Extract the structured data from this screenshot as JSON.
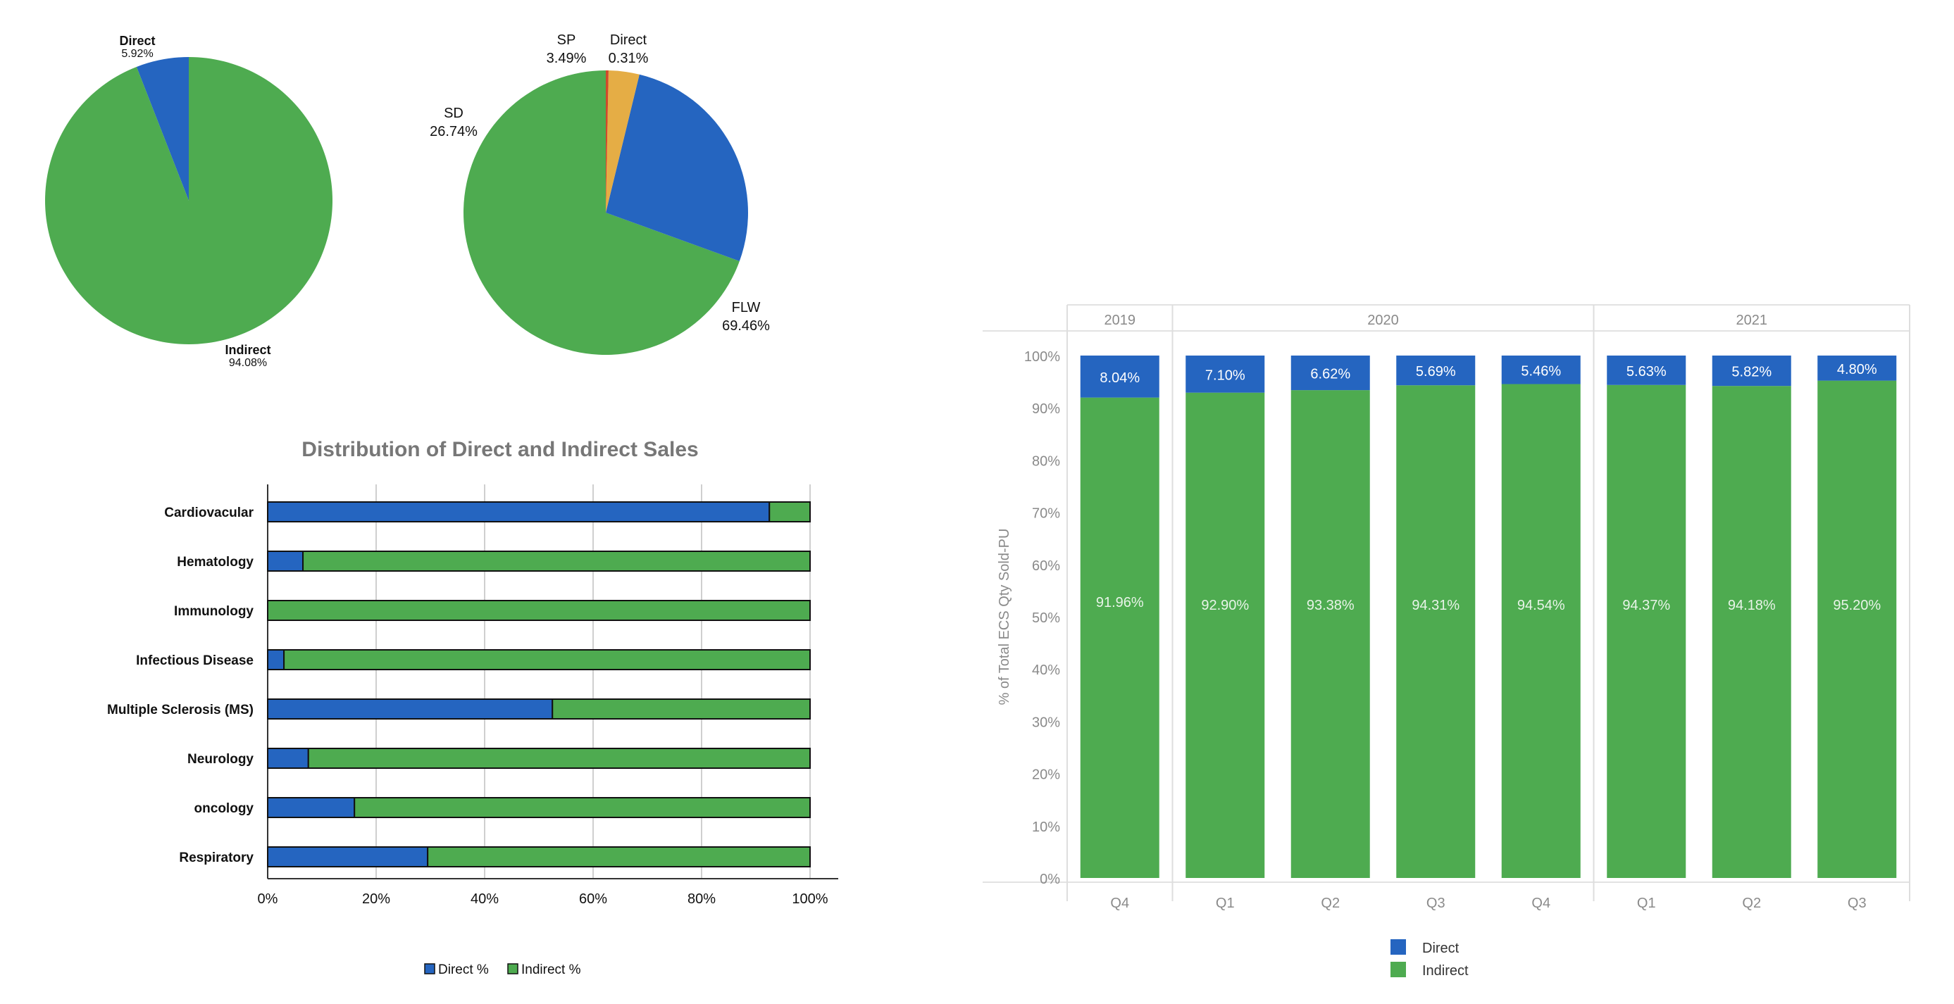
{
  "colors": {
    "direct": "#2565c0",
    "indirect": "#4eab50",
    "sp": "#e5ad45",
    "direct_small": "#d04a2a",
    "grid": "#d5d5d5"
  },
  "chart_data": [
    {
      "type": "pie",
      "slices": [
        {
          "label": "Direct",
          "value": 5.92,
          "value_text": "5.92%",
          "color": "#2565c0"
        },
        {
          "label": "Indirect",
          "value": 94.08,
          "value_text": "94.08%",
          "color": "#4eab50"
        }
      ]
    },
    {
      "type": "pie",
      "slices": [
        {
          "label": "FLW",
          "value": 69.46,
          "value_text": "69.46%",
          "color": "#4eab50"
        },
        {
          "label": "SD",
          "value": 26.74,
          "value_text": "26.74%",
          "color": "#2565c0"
        },
        {
          "label": "SP",
          "value": 3.49,
          "value_text": "3.49%",
          "color": "#e5ad45"
        },
        {
          "label": "Direct",
          "value": 0.31,
          "value_text": "0.31%",
          "color": "#d04a2a"
        }
      ]
    },
    {
      "type": "bar",
      "orientation": "horizontal",
      "stacked": true,
      "title": "Distribution of Direct and Indirect Sales",
      "categories": [
        "Cardiovacular",
        "Hematology",
        "Immunology",
        "Infectious Disease",
        "Multiple Sclerosis (MS)",
        "Neurology",
        "oncology",
        "Respiratory"
      ],
      "series": [
        {
          "name": "Direct %",
          "values": [
            92.5,
            6.5,
            0,
            3,
            52.5,
            7.5,
            16,
            29.5
          ]
        },
        {
          "name": "Indirect %",
          "values": [
            7.5,
            93.5,
            100,
            97,
            47.5,
            92.5,
            84,
            70.5
          ]
        }
      ],
      "xticks": [
        "0%",
        "20%",
        "40%",
        "60%",
        "80%",
        "100%"
      ],
      "xlim": [
        0,
        100
      ],
      "grid": true,
      "legend": "bottom"
    },
    {
      "type": "bar",
      "stacked": true,
      "ylabel": "% of Total ECS Qty Sold-PU",
      "years": [
        {
          "label": "2019",
          "quarters": [
            "Q4"
          ]
        },
        {
          "label": "2020",
          "quarters": [
            "Q1",
            "Q2",
            "Q3",
            "Q4"
          ]
        },
        {
          "label": "2021",
          "quarters": [
            "Q1",
            "Q2",
            "Q3"
          ]
        }
      ],
      "series": [
        {
          "name": "Direct",
          "values": [
            8.04,
            7.1,
            6.62,
            5.69,
            5.46,
            5.63,
            5.82,
            4.8
          ],
          "labels": [
            "8.04%",
            "7.10%",
            "6.62%",
            "5.69%",
            "5.46%",
            "5.63%",
            "5.82%",
            "4.80%"
          ]
        },
        {
          "name": "Indirect",
          "values": [
            91.96,
            92.9,
            93.38,
            94.31,
            94.54,
            94.37,
            94.18,
            95.2
          ],
          "labels": [
            "91.96%",
            "92.90%",
            "93.38%",
            "94.31%",
            "94.54%",
            "94.37%",
            "94.18%",
            "95.20%"
          ]
        }
      ],
      "yticks": [
        "0%",
        "10%",
        "20%",
        "30%",
        "40%",
        "50%",
        "60%",
        "70%",
        "80%",
        "90%",
        "100%"
      ],
      "ylim": [
        0,
        100
      ],
      "legend": "bottom"
    }
  ]
}
